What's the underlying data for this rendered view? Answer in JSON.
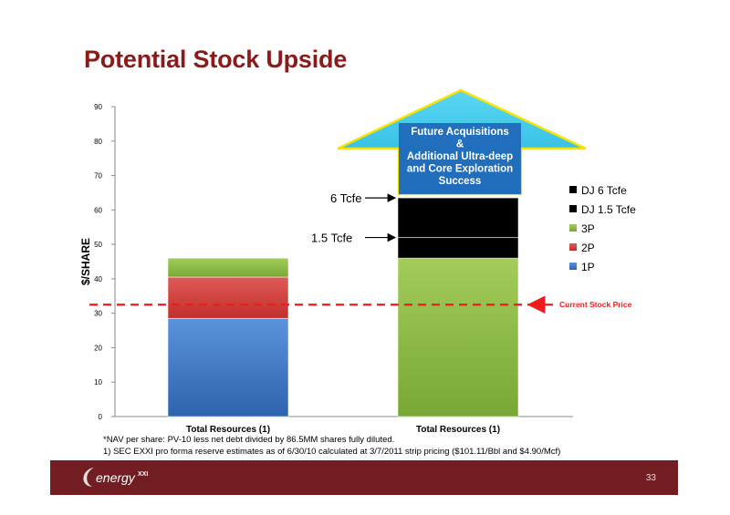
{
  "title": "Potential Stock Upside",
  "footnotes": [
    "*NAV per share: PV-10 less net debt divided by 86.5MM shares fully diluted.",
    "1) SEC EXXI pro forma reserve estimates as of 6/30/10 calculated at 3/7/2011 strip pricing ($101.11/Bbl and $4.90/Mcf)"
  ],
  "footer": {
    "logo_text": "energy",
    "logo_superscript": "XXI",
    "page_number": "33"
  },
  "colors": {
    "brand": "#721d22",
    "title": "#8b1a1a",
    "1P": "#3f78c6",
    "2P": "#d7413d",
    "3P": "#8cbd43",
    "DJ 1.5 Tcfe": "#7c51a1",
    "DJ 6 Tcfe": "#3aa7c4",
    "current_price_line": "#ee1c1c",
    "arrow_fill": "#2cc3ea",
    "arrow_text_box": "#1f67b8"
  },
  "chart_data": {
    "type": "bar",
    "stacked": true,
    "ylabel": "$/SHARE",
    "ylim": [
      0,
      90
    ],
    "yticks": [
      0,
      10,
      20,
      30,
      40,
      50,
      60,
      70,
      80,
      90
    ],
    "categories": [
      "Total Resources (1)",
      "Total Resources (1)"
    ],
    "series": [
      {
        "name": "1P",
        "values": [
          28.5,
          0
        ]
      },
      {
        "name": "2P",
        "values": [
          12,
          0
        ]
      },
      {
        "name": "3P",
        "values": [
          5.5,
          46
        ]
      },
      {
        "name": "DJ 1.5 Tcfe",
        "values": [
          0,
          6
        ]
      },
      {
        "name": "DJ 6 Tcfe",
        "values": [
          0,
          11.5
        ]
      }
    ],
    "legend": {
      "placement": "right",
      "order": [
        "DJ 6 Tcfe",
        "DJ 1.5 Tcfe",
        "3P",
        "2P",
        "1P"
      ]
    },
    "reference_line": {
      "value": 32.5,
      "label": "Current Stock Price"
    },
    "annotations": [
      {
        "text": "6 Tcfe",
        "y": 63.5
      },
      {
        "text": "1.5 Tcfe",
        "y": 52
      }
    ],
    "arrow_callout": {
      "lines": [
        "Future Acquisitions",
        "&",
        "Additional Ultra-deep",
        "and Core Exploration",
        "Success"
      ]
    }
  }
}
